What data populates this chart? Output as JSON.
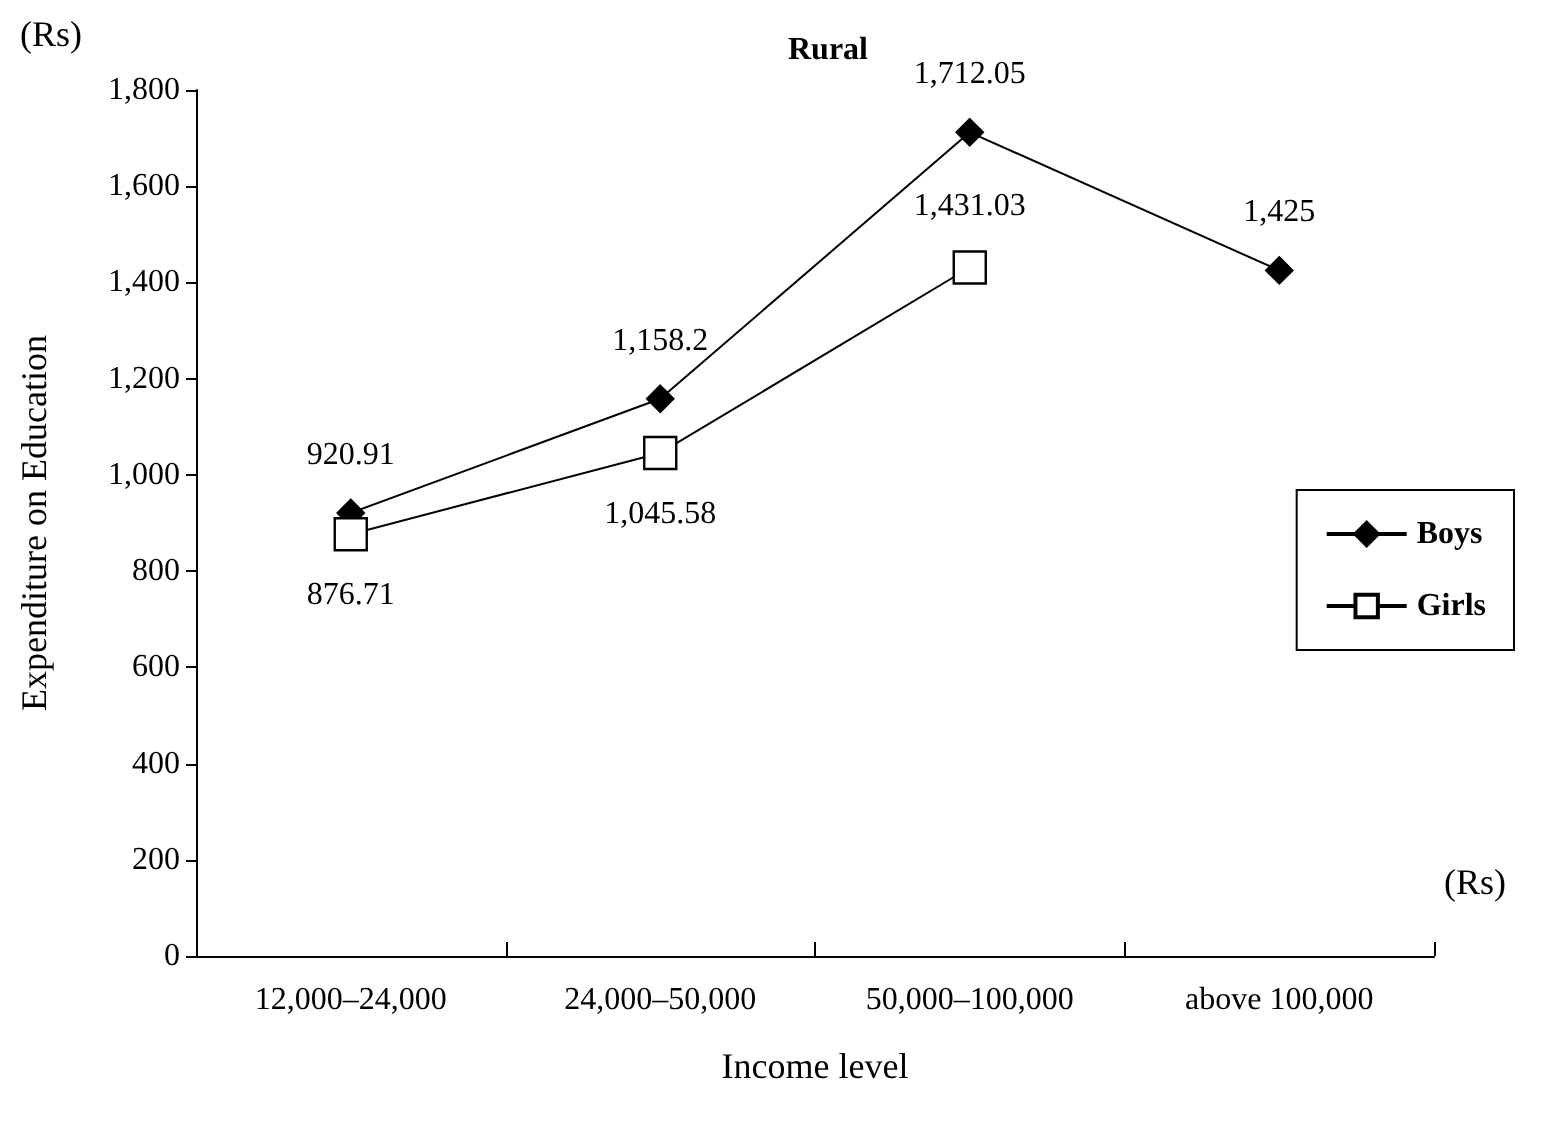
{
  "chart_data": {
    "type": "line",
    "title": "Rural",
    "xlabel": "Income level",
    "ylabel": "Expenditure on Education",
    "categories": [
      "12,000–24,000",
      "24,000–50,000",
      "50,000–100,000",
      "above 100,000"
    ],
    "series": [
      {
        "name": "Boys",
        "color": "#000000",
        "marker": "diamond",
        "values": [
          920.91,
          1158.2,
          1712.05,
          1425
        ],
        "value_labels": [
          "920.91",
          "1,158.2",
          "1,712.05",
          "1,425"
        ]
      },
      {
        "name": "Girls",
        "color": "#000000",
        "marker": "square",
        "values": [
          876.71,
          1045.58,
          1431.03,
          null
        ],
        "value_labels": [
          "876.71",
          "1,045.58",
          "1,431.03",
          null
        ]
      }
    ],
    "ylim": [
      0,
      1800
    ],
    "yticks": [
      0,
      200,
      400,
      600,
      800,
      {
        "value": 1000,
        "label": "1,000"
      },
      {
        "value": 1200,
        "label": "1,200"
      },
      {
        "value": 1400,
        "label": "1,400"
      },
      {
        "value": 1600,
        "label": "1,600"
      },
      {
        "value": 1800,
        "label": "1,800"
      }
    ],
    "grid": false,
    "legend": "right",
    "line_style": "solid",
    "annotations": [
      "(Rs)",
      "(Rs)"
    ]
  }
}
